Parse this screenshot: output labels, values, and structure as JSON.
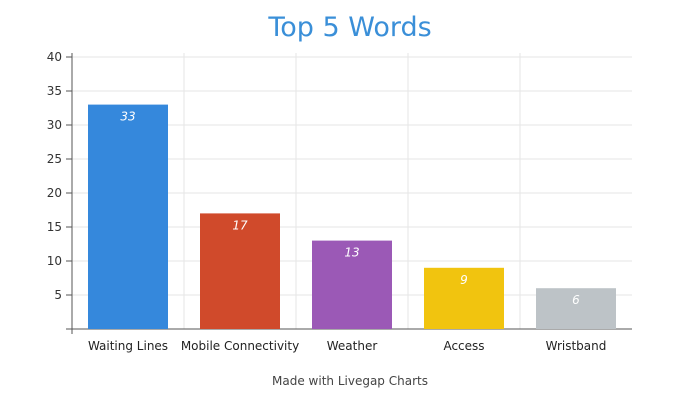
{
  "chart_data": {
    "type": "bar",
    "title": "Top 5 Words",
    "categories": [
      "Waiting Lines",
      "Mobile Connectivity",
      "Weather",
      "Access",
      "Wristband"
    ],
    "values": [
      33,
      17,
      13,
      9,
      6
    ],
    "data_labels": [
      "33",
      "17",
      "13",
      "9",
      "6"
    ],
    "colors": [
      "#3588dc",
      "#d04a2b",
      "#9b59b6",
      "#f1c40f",
      "#bdc3c7"
    ],
    "yticks": [
      5,
      10,
      15,
      20,
      25,
      30,
      35,
      40
    ],
    "ylim": [
      0,
      40
    ],
    "grid": true,
    "legend": "none",
    "xlabel": "",
    "ylabel": ""
  },
  "footer": "Made with Livegap Charts"
}
